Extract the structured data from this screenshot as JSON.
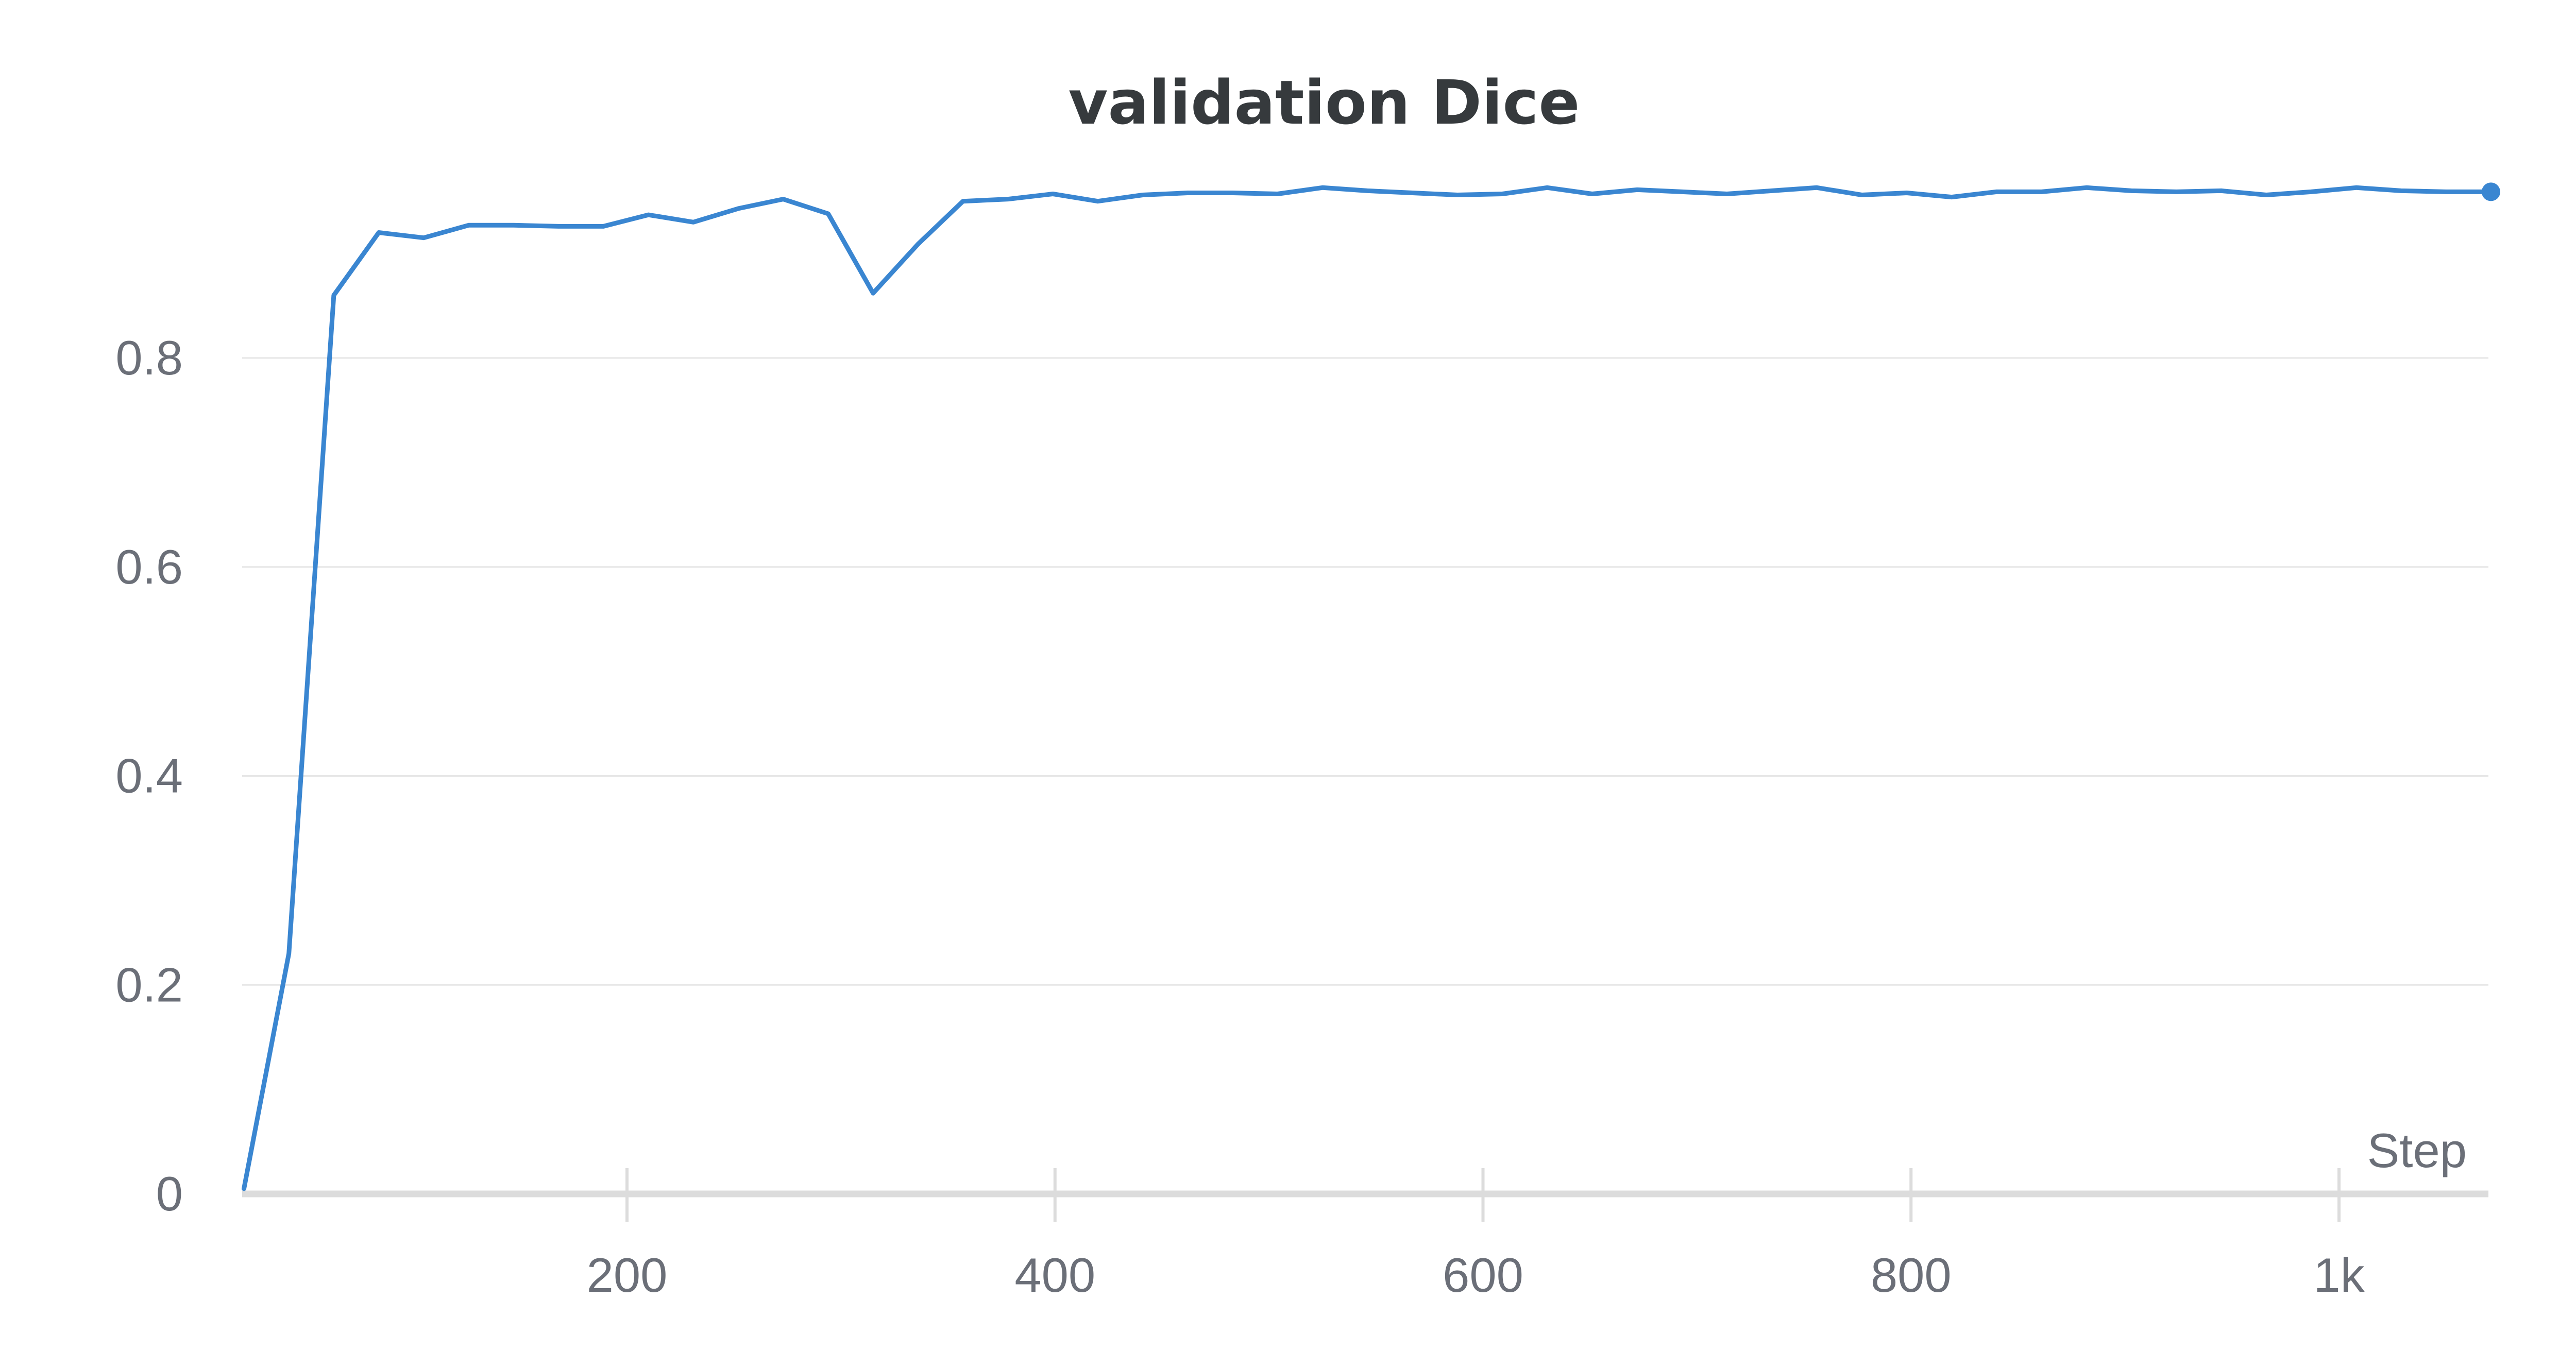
{
  "chart_data": {
    "type": "line",
    "title": "validation Dice",
    "xlabel": "Step",
    "ylabel": "",
    "xlim": [
      0,
      1080
    ],
    "ylim": [
      0,
      1.0
    ],
    "x_ticks": [
      {
        "value": 200,
        "label": "200"
      },
      {
        "value": 400,
        "label": "400"
      },
      {
        "value": 600,
        "label": "600"
      },
      {
        "value": 800,
        "label": "800"
      },
      {
        "value": 1000,
        "label": "1k"
      }
    ],
    "y_ticks": [
      {
        "value": 0,
        "label": "0"
      },
      {
        "value": 0.2,
        "label": "0.2"
      },
      {
        "value": 0.4,
        "label": "0.4"
      },
      {
        "value": 0.6,
        "label": "0.6"
      },
      {
        "value": 0.8,
        "label": "0.8"
      }
    ],
    "grid": true,
    "legend": "none",
    "series": [
      {
        "color": "#3a86d1",
        "last_point_marker": true,
        "x": [
          21,
          42,
          63,
          84,
          105,
          126,
          147,
          168,
          189,
          210,
          231,
          252,
          273,
          294,
          315,
          336,
          357,
          378,
          399,
          420,
          441,
          462,
          483,
          504,
          525,
          546,
          567,
          588,
          609,
          630,
          651,
          672,
          693,
          714,
          735,
          756,
          777,
          798,
          819,
          840,
          861,
          882,
          903,
          924,
          945,
          966,
          987,
          1008,
          1029,
          1050,
          1071
        ],
        "values": [
          0.005,
          0.23,
          0.86,
          0.92,
          0.915,
          0.927,
          0.927,
          0.926,
          0.926,
          0.937,
          0.93,
          0.943,
          0.952,
          0.938,
          0.862,
          0.909,
          0.95,
          0.952,
          0.957,
          0.95,
          0.956,
          0.958,
          0.958,
          0.957,
          0.963,
          0.96,
          0.958,
          0.956,
          0.957,
          0.963,
          0.957,
          0.961,
          0.959,
          0.957,
          0.96,
          0.963,
          0.956,
          0.958,
          0.954,
          0.959,
          0.959,
          0.963,
          0.96,
          0.959,
          0.96,
          0.956,
          0.959,
          0.963,
          0.96,
          0.959,
          0.959
        ]
      }
    ]
  }
}
